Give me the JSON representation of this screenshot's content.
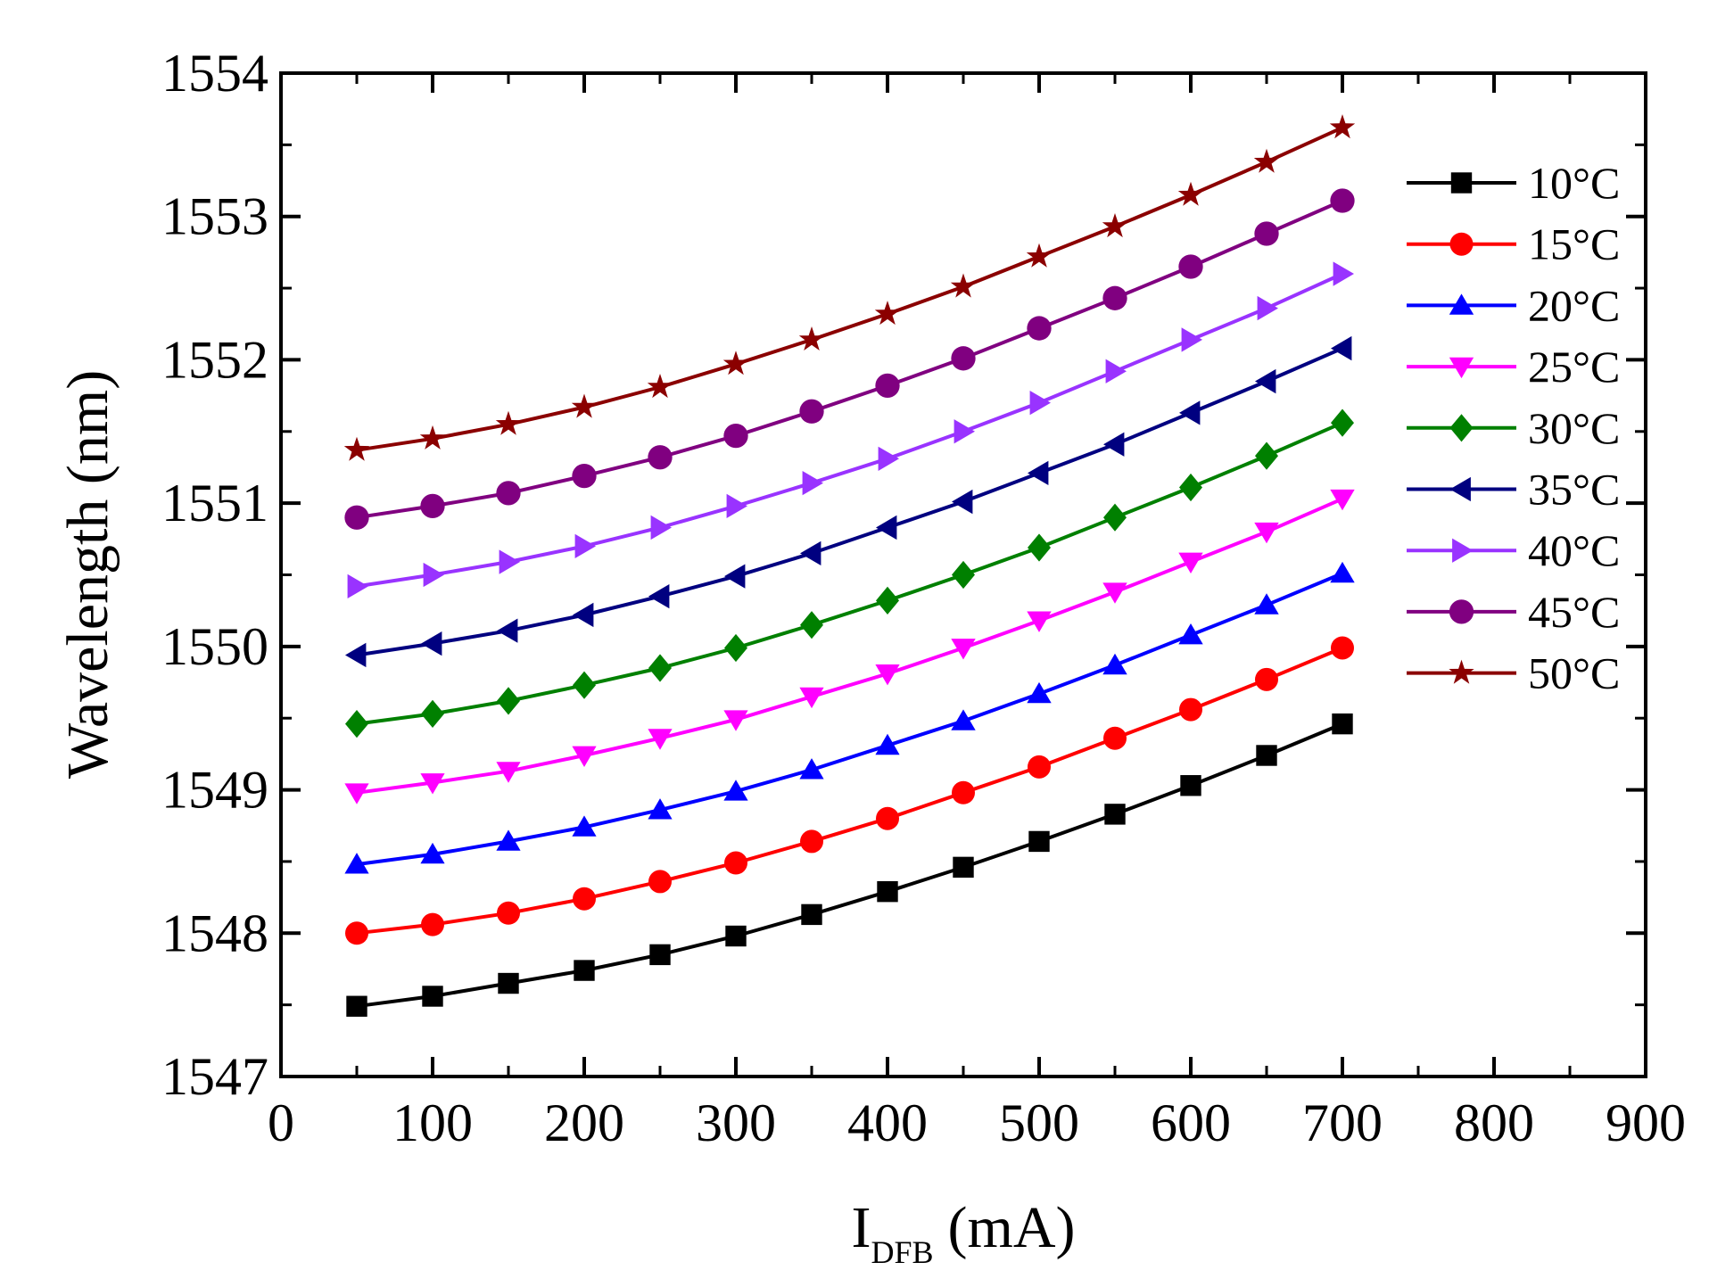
{
  "chart_data": {
    "type": "line",
    "title": "",
    "xlabel_main": "I",
    "xlabel_sub": "DFB",
    "xlabel_unit": "(mA)",
    "ylabel": "Wavelength (nm)",
    "xlim": [
      0,
      900
    ],
    "ylim": [
      1547,
      1554
    ],
    "xticks": [
      "0",
      "100",
      "200",
      "300",
      "400",
      "500",
      "600",
      "700",
      "800",
      "900"
    ],
    "yticks": [
      "1547",
      "1548",
      "1549",
      "1550",
      "1551",
      "1552",
      "1553",
      "1554"
    ],
    "grid": false,
    "legend_position": "top-right",
    "x": [
      50,
      100,
      150,
      200,
      250,
      300,
      350,
      400,
      450,
      500,
      550,
      600,
      650,
      700
    ],
    "series": [
      {
        "name": "10°C",
        "color": "#000000",
        "marker": "square",
        "values": [
          1547.49,
          1547.56,
          1547.65,
          1547.74,
          1547.85,
          1547.98,
          1548.13,
          1548.29,
          1548.46,
          1548.64,
          1548.83,
          1549.03,
          1549.24,
          1549.46
        ]
      },
      {
        "name": "15°C",
        "color": "#ff0000",
        "marker": "circle",
        "values": [
          1548.0,
          1548.06,
          1548.14,
          1548.24,
          1548.36,
          1548.49,
          1548.64,
          1548.8,
          1548.98,
          1549.16,
          1549.36,
          1549.56,
          1549.77,
          1549.99
        ]
      },
      {
        "name": "20°C",
        "color": "#0000ff",
        "marker": "triangle-up",
        "values": [
          1548.48,
          1548.55,
          1548.64,
          1548.74,
          1548.86,
          1548.99,
          1549.14,
          1549.31,
          1549.48,
          1549.67,
          1549.87,
          1550.08,
          1550.29,
          1550.51
        ]
      },
      {
        "name": "25°C",
        "color": "#ff00ff",
        "marker": "triangle-down",
        "values": [
          1548.98,
          1549.05,
          1549.13,
          1549.24,
          1549.36,
          1549.49,
          1549.65,
          1549.81,
          1549.99,
          1550.18,
          1550.38,
          1550.59,
          1550.8,
          1551.03
        ]
      },
      {
        "name": "30°C",
        "color": "#008000",
        "marker": "diamond",
        "values": [
          1549.46,
          1549.53,
          1549.62,
          1549.73,
          1549.85,
          1549.99,
          1550.15,
          1550.32,
          1550.5,
          1550.69,
          1550.9,
          1551.11,
          1551.33,
          1551.56
        ]
      },
      {
        "name": "35°C",
        "color": "#000080",
        "marker": "triangle-left",
        "values": [
          1549.94,
          1550.02,
          1550.11,
          1550.22,
          1550.35,
          1550.49,
          1550.65,
          1550.83,
          1551.01,
          1551.21,
          1551.41,
          1551.63,
          1551.85,
          1552.08
        ]
      },
      {
        "name": "40°C",
        "color": "#9933ff",
        "marker": "triangle-right",
        "values": [
          1550.42,
          1550.5,
          1550.59,
          1550.7,
          1550.83,
          1550.98,
          1551.14,
          1551.31,
          1551.5,
          1551.7,
          1551.92,
          1552.14,
          1552.36,
          1552.6
        ]
      },
      {
        "name": "45°C",
        "color": "#800080",
        "marker": "hexagon",
        "values": [
          1550.9,
          1550.98,
          1551.07,
          1551.19,
          1551.32,
          1551.47,
          1551.64,
          1551.82,
          1552.01,
          1552.22,
          1552.43,
          1552.65,
          1552.88,
          1553.11
        ]
      },
      {
        "name": "50°C",
        "color": "#8b0000",
        "marker": "star",
        "values": [
          1551.37,
          1551.45,
          1551.55,
          1551.67,
          1551.81,
          1551.97,
          1552.14,
          1552.32,
          1552.51,
          1552.72,
          1552.93,
          1553.15,
          1553.38,
          1553.62
        ]
      }
    ]
  }
}
